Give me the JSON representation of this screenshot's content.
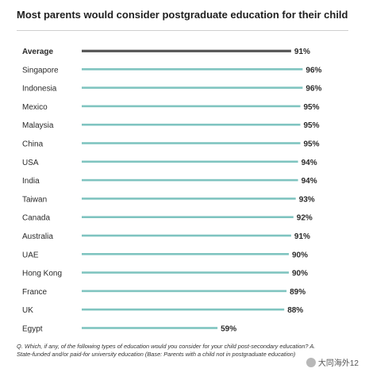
{
  "title": "Most parents would consider postgraduate education for their child",
  "footnote": "Q. Which, if any, of the following types of education would you consider for your child post-secondary education? A. State-funded and/or paid-for university education (Base: Parents with a child not in postgraduate education)",
  "watermark": "大同海外12",
  "colors": {
    "average": "#555555",
    "country": "#7fc4c0"
  },
  "chart_data": {
    "type": "bar",
    "orientation": "horizontal",
    "categories": [
      "Average",
      "Singapore",
      "Indonesia",
      "Mexico",
      "Malaysia",
      "China",
      "USA",
      "India",
      "Taiwan",
      "Canada",
      "Australia",
      "UAE",
      "Hong Kong",
      "France",
      "UK",
      "Egypt"
    ],
    "values": [
      91,
      96,
      96,
      95,
      95,
      95,
      94,
      94,
      93,
      92,
      91,
      90,
      90,
      89,
      88,
      59
    ],
    "value_labels": [
      "91%",
      "96%",
      "96%",
      "95%",
      "95%",
      "95%",
      "94%",
      "94%",
      "93%",
      "92%",
      "91%",
      "90%",
      "90%",
      "89%",
      "88%",
      "59%"
    ],
    "highlight": "Average",
    "xlim": [
      0,
      100
    ],
    "xlabel": "",
    "ylabel": "",
    "grid": false,
    "legend": false
  }
}
